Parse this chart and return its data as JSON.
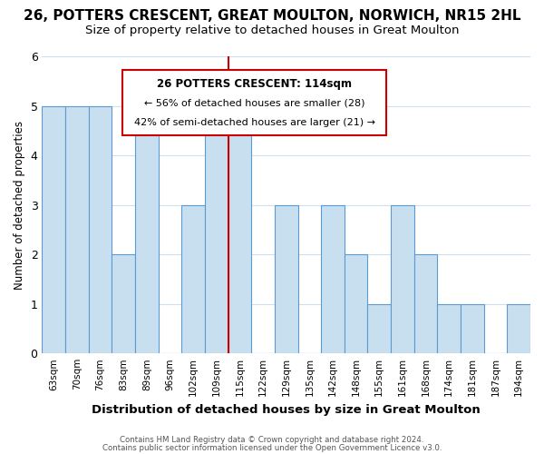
{
  "title": "26, POTTERS CRESCENT, GREAT MOULTON, NORWICH, NR15 2HL",
  "subtitle": "Size of property relative to detached houses in Great Moulton",
  "xlabel": "Distribution of detached houses by size in Great Moulton",
  "ylabel": "Number of detached properties",
  "bin_labels": [
    "63sqm",
    "70sqm",
    "76sqm",
    "83sqm",
    "89sqm",
    "96sqm",
    "102sqm",
    "109sqm",
    "115sqm",
    "122sqm",
    "129sqm",
    "135sqm",
    "142sqm",
    "148sqm",
    "155sqm",
    "161sqm",
    "168sqm",
    "174sqm",
    "181sqm",
    "187sqm",
    "194sqm"
  ],
  "bar_heights": [
    5,
    5,
    5,
    2,
    5,
    0,
    3,
    5,
    5,
    0,
    3,
    0,
    3,
    2,
    1,
    3,
    2,
    1,
    1,
    0,
    1
  ],
  "bar_color": "#c8dff0",
  "bar_edge_color": "#5b9bd5",
  "property_line_color": "#cc0000",
  "property_line_bin": 8,
  "annotation_title": "26 POTTERS CRESCENT: 114sqm",
  "annotation_line1": "← 56% of detached houses are smaller (28)",
  "annotation_line2": "42% of semi-detached houses are larger (21) →",
  "annotation_box_color": "#ffffff",
  "annotation_box_edge_color": "#cc0000",
  "ylim": [
    0,
    6
  ],
  "yticks": [
    0,
    1,
    2,
    3,
    4,
    5,
    6
  ],
  "footer_line1": "Contains HM Land Registry data © Crown copyright and database right 2024.",
  "footer_line2": "Contains public sector information licensed under the Open Government Licence v3.0.",
  "background_color": "#ffffff",
  "grid_color": "#d0dff0",
  "title_fontsize": 11,
  "subtitle_fontsize": 9.5
}
